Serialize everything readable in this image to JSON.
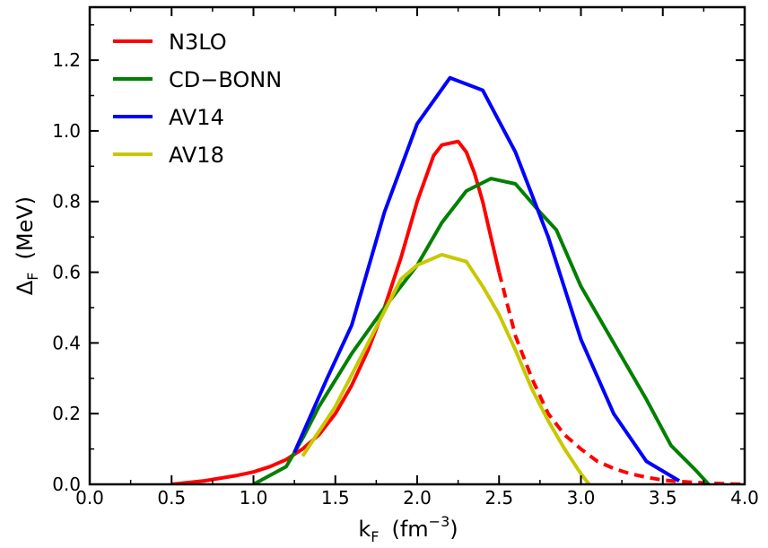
{
  "chart_data": {
    "type": "line",
    "xlabel": {
      "base": "k",
      "sub": "F",
      "unit_open": "(fm",
      "unit_sup": "−3",
      "unit_close": ")"
    },
    "ylabel": {
      "base": "Δ",
      "sub": "F",
      "unit": "(MeV)"
    },
    "xlim": [
      0.0,
      4.0
    ],
    "ylim": [
      0.0,
      1.35
    ],
    "x_ticks": [
      0.0,
      0.5,
      1.0,
      1.5,
      2.0,
      2.5,
      3.0,
      3.5,
      4.0
    ],
    "x_tick_labels": [
      "0.0",
      "0.5",
      "1.0",
      "1.5",
      "2.0",
      "2.5",
      "3.0",
      "3.5",
      "4.0"
    ],
    "y_ticks": [
      0.0,
      0.2,
      0.4,
      0.6,
      0.8,
      1.0,
      1.2
    ],
    "y_tick_labels": [
      "0.0",
      "0.2",
      "0.4",
      "0.6",
      "0.8",
      "1.0",
      "1.2"
    ],
    "grid": false,
    "legend_position": "top-left",
    "series": [
      {
        "name": "N3LO",
        "color": "#ff0000",
        "x": [
          0.5,
          0.7,
          0.9,
          1.0,
          1.1,
          1.2,
          1.3,
          1.4,
          1.5,
          1.6,
          1.7,
          1.8,
          1.9,
          2.0,
          2.1,
          2.15,
          2.2,
          2.25,
          2.3,
          2.35,
          2.4,
          2.45,
          2.5
        ],
        "y": [
          0.0,
          0.01,
          0.025,
          0.035,
          0.05,
          0.07,
          0.1,
          0.14,
          0.2,
          0.28,
          0.38,
          0.5,
          0.64,
          0.8,
          0.93,
          0.96,
          0.965,
          0.97,
          0.94,
          0.88,
          0.8,
          0.7,
          0.6
        ],
        "dashed": {
          "x": [
            2.5,
            2.6,
            2.7,
            2.8,
            2.9,
            3.0,
            3.1,
            3.2,
            3.3,
            3.4,
            3.5,
            3.6,
            3.7,
            3.8,
            3.9,
            4.0
          ],
          "y": [
            0.6,
            0.42,
            0.3,
            0.2,
            0.14,
            0.1,
            0.065,
            0.045,
            0.03,
            0.02,
            0.012,
            0.008,
            0.005,
            0.003,
            0.001,
            0.0
          ]
        }
      },
      {
        "name": "CD−BONN",
        "color": "#008000",
        "x": [
          1.0,
          1.2,
          1.3,
          1.4,
          1.6,
          1.8,
          2.0,
          2.15,
          2.3,
          2.45,
          2.6,
          2.75,
          2.85,
          3.0,
          3.2,
          3.4,
          3.55,
          3.7,
          3.78
        ],
        "y": [
          0.0,
          0.05,
          0.13,
          0.22,
          0.37,
          0.5,
          0.62,
          0.74,
          0.83,
          0.865,
          0.85,
          0.77,
          0.72,
          0.56,
          0.4,
          0.24,
          0.11,
          0.04,
          0.0
        ]
      },
      {
        "name": "AV14",
        "color": "#0000ff",
        "x": [
          1.25,
          1.45,
          1.6,
          1.8,
          2.0,
          2.2,
          2.4,
          2.6,
          2.8,
          3.0,
          3.2,
          3.4,
          3.6
        ],
        "y": [
          0.09,
          0.3,
          0.45,
          0.77,
          1.02,
          1.15,
          1.115,
          0.94,
          0.7,
          0.41,
          0.2,
          0.065,
          0.01
        ]
      },
      {
        "name": "AV18",
        "color": "#c8c800",
        "x": [
          1.3,
          1.5,
          1.7,
          1.9,
          2.0,
          2.15,
          2.3,
          2.4,
          2.5,
          2.6,
          2.7,
          2.8,
          2.9,
          3.0,
          3.05
        ],
        "y": [
          0.08,
          0.22,
          0.4,
          0.58,
          0.62,
          0.65,
          0.63,
          0.56,
          0.48,
          0.38,
          0.27,
          0.18,
          0.1,
          0.03,
          0.0
        ]
      }
    ]
  }
}
